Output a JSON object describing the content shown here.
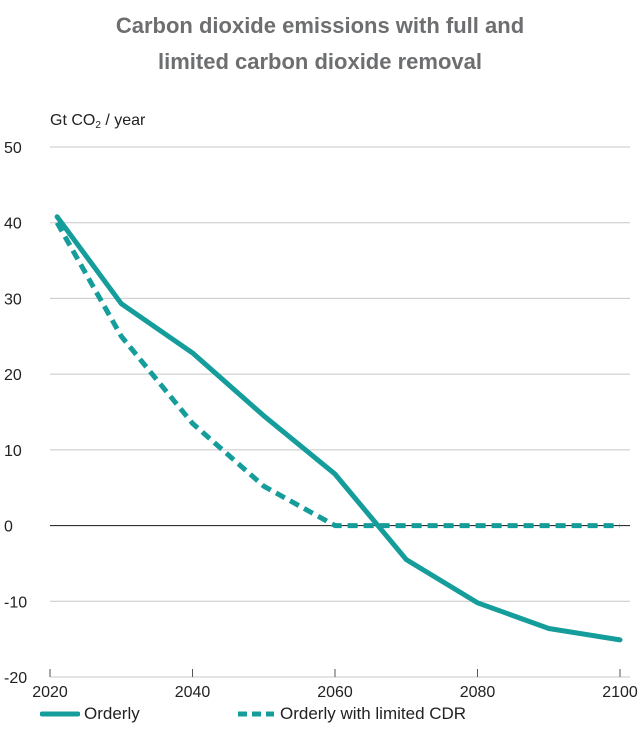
{
  "chart_data": {
    "type": "line",
    "title_lines": [
      "Carbon dioxide emissions with full and",
      "limited carbon dioxide removal"
    ],
    "ylabel_main": "Gt CO",
    "ylabel_sub": "2",
    "ylabel_rest": " / year",
    "xlim": [
      2020,
      2100
    ],
    "ylim": [
      -20,
      50
    ],
    "x_ticks": [
      2020,
      2040,
      2060,
      2080,
      2100
    ],
    "y_ticks": [
      50,
      40,
      30,
      20,
      10,
      0,
      -10,
      -20
    ],
    "grid": true,
    "legend_position": "bottom",
    "series": [
      {
        "name": "Orderly",
        "style": "solid",
        "color": "#149d9b",
        "points": [
          [
            2021,
            40.8
          ],
          [
            2030,
            29.3
          ],
          [
            2040,
            22.8
          ],
          [
            2050,
            14.5
          ],
          [
            2060,
            6.8
          ],
          [
            2070,
            -4.5
          ],
          [
            2080,
            -10.2
          ],
          [
            2090,
            -13.6
          ],
          [
            2100,
            -15.1
          ]
        ]
      },
      {
        "name": "Orderly with limited CDR",
        "style": "dashed",
        "color": "#149d9b",
        "points": [
          [
            2021,
            40.0
          ],
          [
            2030,
            25.0
          ],
          [
            2040,
            13.5
          ],
          [
            2050,
            5.2
          ],
          [
            2060,
            0.0
          ],
          [
            2070,
            0.0
          ],
          [
            2080,
            0.0
          ],
          [
            2090,
            0.0
          ],
          [
            2100,
            0.0
          ]
        ]
      }
    ]
  }
}
